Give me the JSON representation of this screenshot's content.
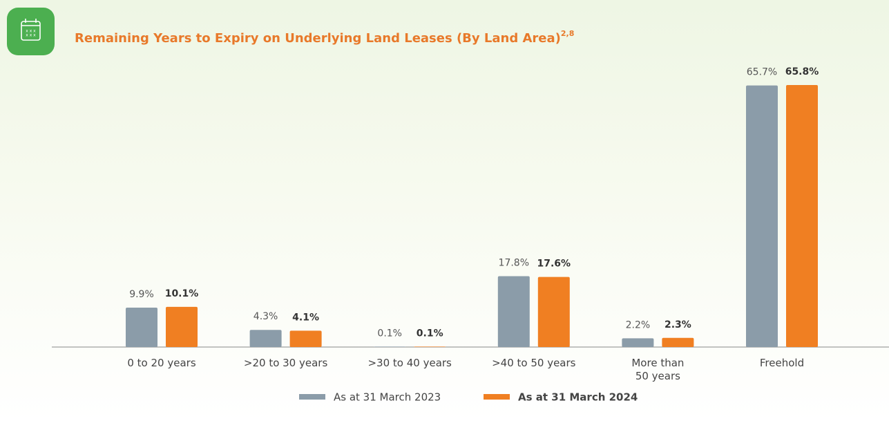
{
  "chart_data": {
    "type": "bar",
    "title": "Remaining Years to Expiry on Underlying Land Leases (By Land Area)",
    "title_note": "2,8",
    "categories": [
      "0 to 20 years",
      ">20 to 30 years",
      ">30 to 40 years",
      ">40 to 50 years",
      "More than\n50 years",
      "Freehold"
    ],
    "series": [
      {
        "name": "As at 31 March 2023",
        "color": "#8b9ca9",
        "values": [
          9.9,
          4.3,
          0.1,
          17.8,
          2.2,
          65.7
        ],
        "value_labels": [
          "9.9%",
          "4.3%",
          "0.1%",
          "17.8%",
          "2.2%",
          "65.7%"
        ]
      },
      {
        "name": "As at 31 March 2024",
        "color": "#f07f22",
        "values": [
          10.1,
          4.1,
          0.1,
          17.6,
          2.3,
          65.8
        ],
        "value_labels": [
          "10.1%",
          "4.1%",
          "0.1%",
          "17.6%",
          "2.3%",
          "65.8%"
        ]
      }
    ]
  }
}
